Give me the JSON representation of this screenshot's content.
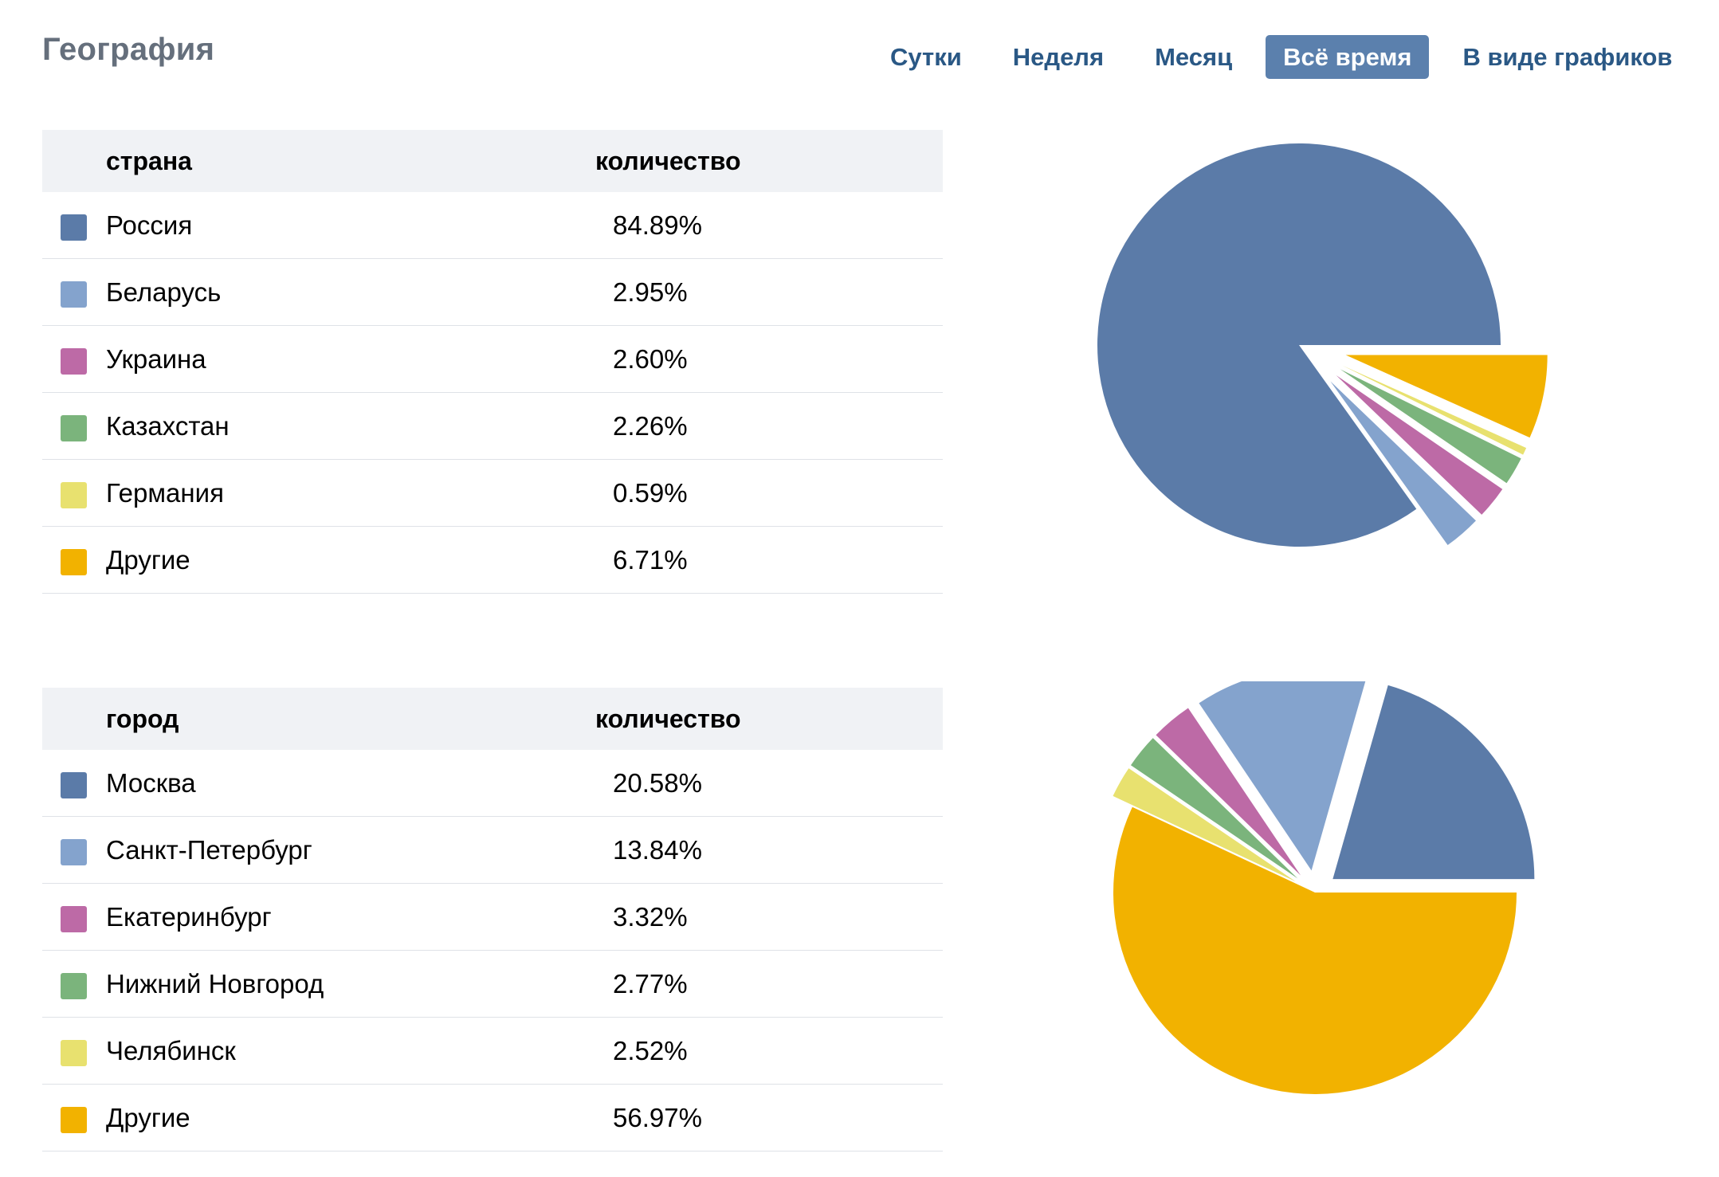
{
  "header": {
    "title": "География"
  },
  "tabs": [
    {
      "label": "Сутки",
      "active": false
    },
    {
      "label": "Неделя",
      "active": false
    },
    {
      "label": "Месяц",
      "active": false
    },
    {
      "label": "Всё время",
      "active": true
    },
    {
      "label": "В виде графиков",
      "active": false
    }
  ],
  "colors": {
    "blue": "#5b7ba8",
    "light_blue": "#84a3cd",
    "magenta": "#bd6aa6",
    "green": "#7bb47c",
    "yellow": "#e8e16f",
    "orange": "#f2b200",
    "tab_active_bg": "#5b80ad",
    "tab_text": "#2a5885",
    "header_bg": "#f0f2f5"
  },
  "countries": {
    "col_name": "страна",
    "col_value": "количество",
    "rows": [
      {
        "name": "Россия",
        "value": "84.89%",
        "color": "#5b7ba8",
        "icon": "color-swatch"
      },
      {
        "name": "Беларусь",
        "value": "2.95%",
        "color": "#84a3cd",
        "icon": "color-swatch"
      },
      {
        "name": "Украина",
        "value": "2.60%",
        "color": "#bd6aa6",
        "icon": "color-swatch"
      },
      {
        "name": "Казахстан",
        "value": "2.26%",
        "color": "#7bb47c",
        "icon": "color-swatch"
      },
      {
        "name": "Германия",
        "value": "0.59%",
        "color": "#e8e16f",
        "icon": "color-swatch"
      },
      {
        "name": "Другие",
        "value": "6.71%",
        "color": "#f2b200",
        "icon": "color-swatch"
      }
    ]
  },
  "cities": {
    "col_name": "город",
    "col_value": "количество",
    "rows": [
      {
        "name": "Москва",
        "value": "20.58%",
        "color": "#5b7ba8",
        "icon": "color-swatch"
      },
      {
        "name": "Санкт-Петербург",
        "value": "13.84%",
        "color": "#84a3cd",
        "icon": "color-swatch"
      },
      {
        "name": "Екатеринбург",
        "value": "3.32%",
        "color": "#bd6aa6",
        "icon": "color-swatch"
      },
      {
        "name": "Нижний Новгород",
        "value": "2.77%",
        "color": "#7bb47c",
        "icon": "color-swatch"
      },
      {
        "name": "Челябинск",
        "value": "2.52%",
        "color": "#e8e16f",
        "icon": "color-swatch"
      },
      {
        "name": "Другие",
        "value": "56.97%",
        "color": "#f2b200",
        "icon": "color-swatch"
      }
    ]
  },
  "chart_data": [
    {
      "type": "pie",
      "categories": [
        "Россия",
        "Беларусь",
        "Украина",
        "Казахстан",
        "Германия",
        "Другие"
      ],
      "values": [
        84.89,
        2.95,
        2.6,
        2.26,
        0.59,
        6.71
      ],
      "colors": [
        "#5b7ba8",
        "#84a3cd",
        "#bd6aa6",
        "#7bb47c",
        "#e8e16f",
        "#f2b200"
      ],
      "exploded": [
        false,
        true,
        true,
        true,
        true,
        true
      ],
      "title": ""
    },
    {
      "type": "pie",
      "categories": [
        "Москва",
        "Санкт-Петербург",
        "Екатеринбург",
        "Нижний Новгород",
        "Челябинск",
        "Другие"
      ],
      "values": [
        20.58,
        13.84,
        3.32,
        2.77,
        2.52,
        56.97
      ],
      "colors": [
        "#5b7ba8",
        "#84a3cd",
        "#bd6aa6",
        "#7bb47c",
        "#e8e16f",
        "#f2b200"
      ],
      "exploded": [
        true,
        true,
        true,
        true,
        true,
        false
      ],
      "title": ""
    }
  ]
}
